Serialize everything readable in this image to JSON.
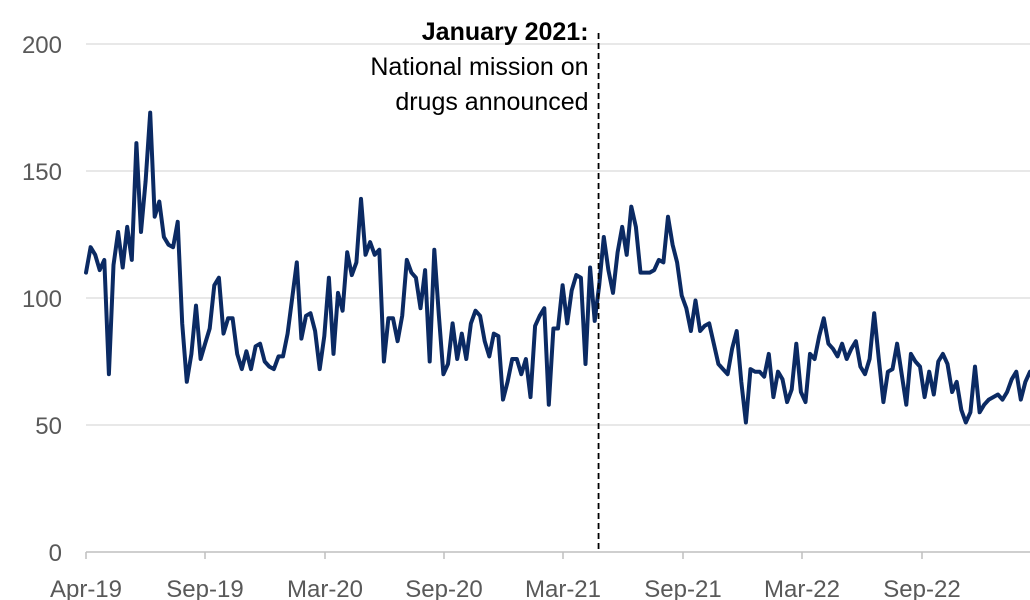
{
  "chart_data": {
    "type": "line",
    "title": "",
    "xlabel": "",
    "ylabel": "",
    "ylim": [
      0,
      200
    ],
    "y_ticks": [
      "0",
      "50",
      "100",
      "150",
      "200"
    ],
    "x_ticks": [
      "Apr-19",
      "Sep-19",
      "Mar-20",
      "Sep-20",
      "Mar-21",
      "Sep-21",
      "Mar-22",
      "Sep-22"
    ],
    "x_start": "2019-04-01",
    "x_end": "2023-03-31",
    "grid": "horizontal",
    "legend": "none",
    "line_color": "#0b2a63",
    "annotation": {
      "date": "2021-01-19",
      "label_bold": "January 2021:",
      "label_line1": "National mission on",
      "label_line2": "drugs announced"
    },
    "series": [
      {
        "values": [
          110,
          120,
          117,
          111,
          115,
          70,
          113,
          126,
          112,
          128,
          115,
          161,
          126,
          146,
          173,
          132,
          138,
          124,
          121,
          120,
          130,
          90,
          67,
          78,
          97,
          76,
          82,
          88,
          105,
          108,
          86,
          92,
          92,
          78,
          72,
          79,
          72,
          81,
          82,
          75,
          73,
          72,
          77,
          77,
          86,
          100,
          114,
          84,
          93,
          94,
          87,
          72,
          85,
          108,
          78,
          102,
          95,
          118,
          109,
          114,
          139,
          117,
          122,
          117,
          119,
          75,
          92,
          92,
          83,
          93,
          115,
          110,
          108,
          96,
          111,
          75,
          119,
          93,
          70,
          74,
          90,
          76,
          86,
          76,
          90,
          95,
          93,
          83,
          77,
          86,
          85,
          60,
          67,
          76,
          76,
          70,
          76,
          61,
          89,
          93,
          96,
          58,
          88,
          88,
          105,
          90,
          103,
          109,
          108,
          74,
          112,
          91,
          105,
          124,
          111,
          102,
          118,
          128,
          117,
          136,
          128,
          110,
          110,
          110,
          111,
          115,
          114,
          132,
          121,
          114,
          101,
          96,
          87,
          99,
          87,
          89,
          90,
          82,
          74,
          72,
          70,
          80,
          87,
          67,
          51,
          72,
          71,
          71,
          69,
          78,
          61,
          71,
          68,
          59,
          64,
          82,
          63,
          59,
          78,
          76,
          85,
          92,
          82,
          80,
          77,
          82,
          76,
          80,
          83,
          73,
          70,
          76,
          94,
          76,
          59,
          71,
          72,
          82,
          70,
          58,
          78,
          75,
          73,
          61,
          71,
          62,
          75,
          78,
          74,
          63,
          67,
          56,
          51,
          55,
          73,
          55,
          58,
          60,
          61,
          62,
          60,
          63,
          68,
          71,
          60,
          67,
          71
        ]
      }
    ]
  }
}
